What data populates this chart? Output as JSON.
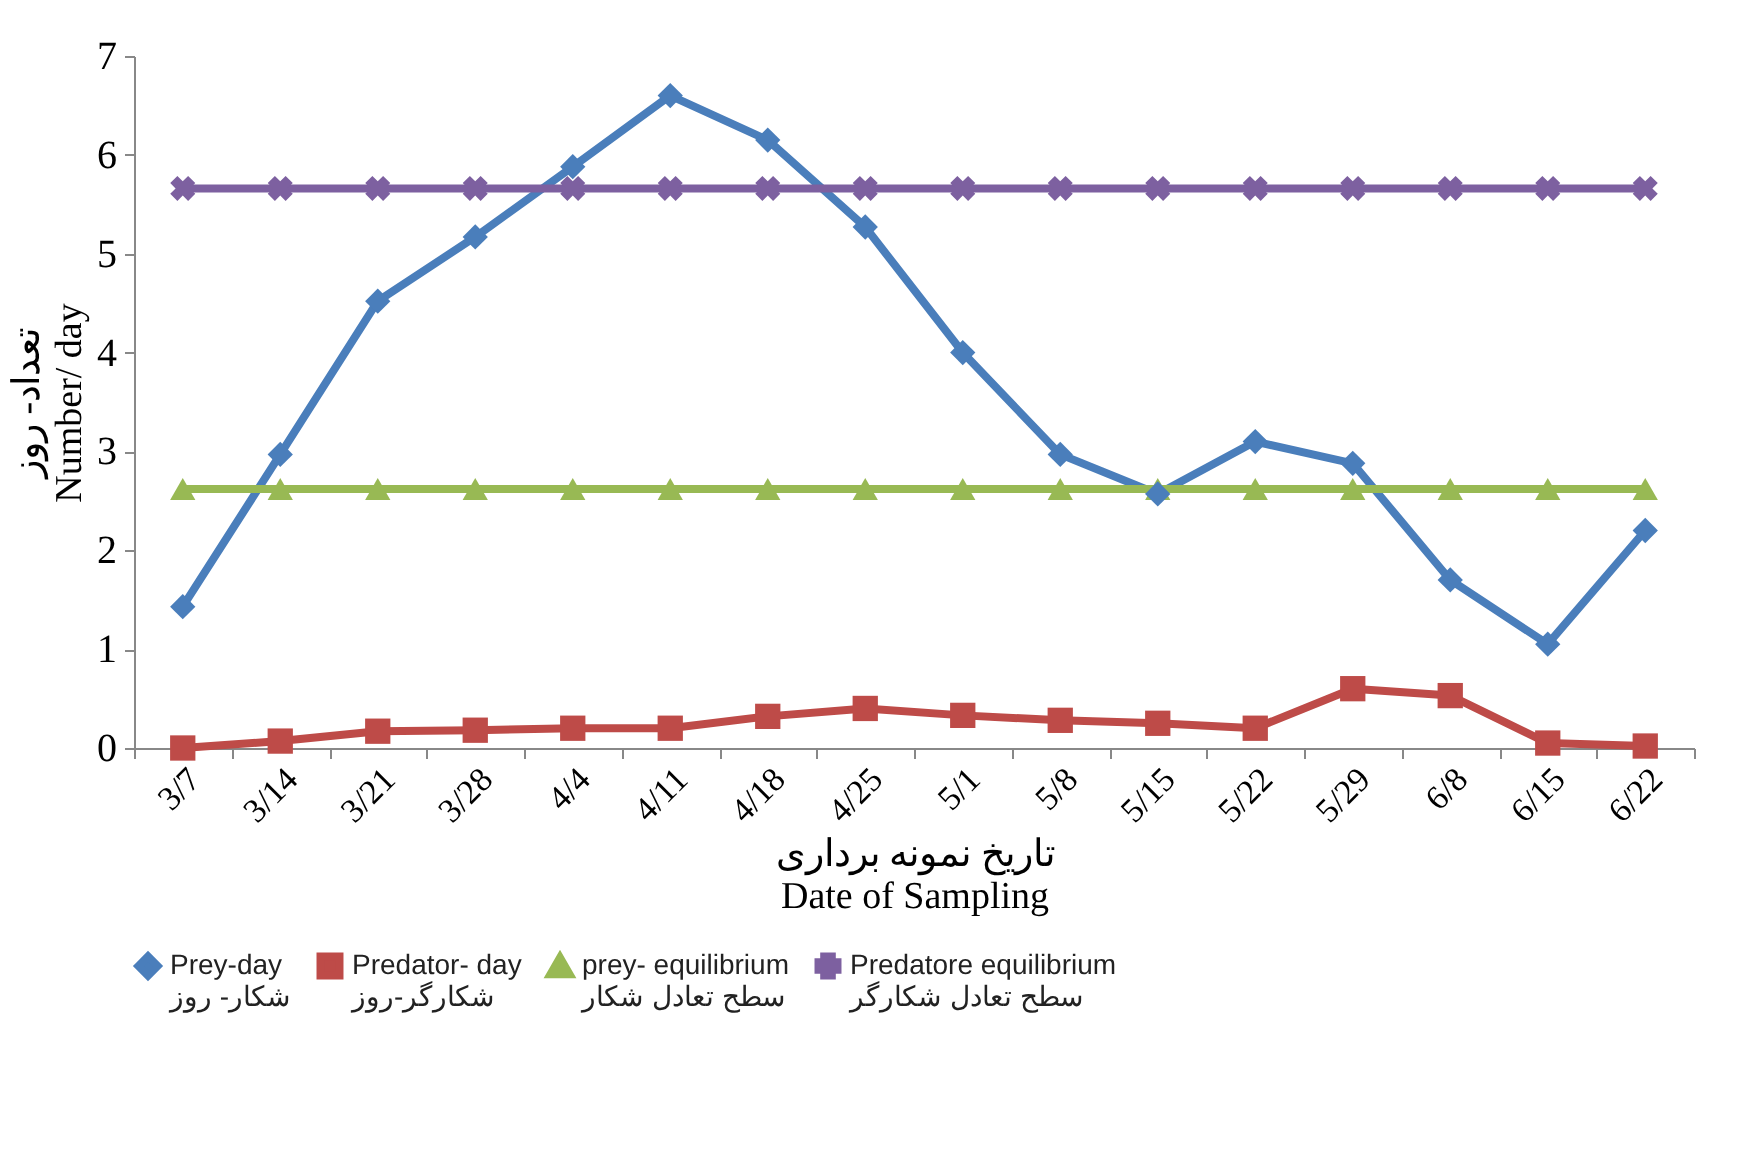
{
  "chart_data": {
    "type": "line",
    "xlabel": "تاریخ نمونه برداری\nDate of Sampling",
    "ylabel": "تعداد- روز\nNumber/ day",
    "categories": [
      "3/7",
      "3/14",
      "3/21",
      "3/28",
      "4/4",
      "4/11",
      "4/18",
      "4/25",
      "5/1",
      "5/8",
      "5/15",
      "5/22",
      "5/29",
      "6/8",
      "6/15",
      "6/22"
    ],
    "ylim": [
      0,
      7
    ],
    "yticks": [
      0,
      1,
      2,
      3,
      4,
      5,
      6,
      7
    ],
    "grid": false,
    "legend": "bottom",
    "series": [
      {
        "name": "Prey-day\nشکار- روز",
        "color": "#4a7ebb",
        "marker": "diamond",
        "values": [
          1.43,
          2.97,
          4.52,
          5.17,
          5.88,
          6.6,
          6.15,
          5.27,
          4.0,
          2.97,
          2.57,
          3.1,
          2.88,
          1.7,
          1.05,
          2.2
        ]
      },
      {
        "name": "Predator- day\nشکارگر-روز",
        "color": "#be4b48",
        "marker": "square",
        "values": [
          0,
          0.07,
          0.17,
          0.18,
          0.2,
          0.2,
          0.32,
          0.4,
          0.33,
          0.28,
          0.25,
          0.2,
          0.6,
          0.53,
          0.05,
          0.02
        ]
      },
      {
        "name": "prey- equilibrium\nسطح تعادل شکار",
        "color": "#98b954",
        "marker": "triangle",
        "values": [
          2.62,
          2.62,
          2.62,
          2.62,
          2.62,
          2.62,
          2.62,
          2.62,
          2.62,
          2.62,
          2.62,
          2.62,
          2.62,
          2.62,
          2.62,
          2.62
        ]
      },
      {
        "name": "Predatore equilibrium\nسطح تعادل شکارگر",
        "color": "#7d60a0",
        "marker": "cross",
        "values": [
          5.66,
          5.66,
          5.66,
          5.66,
          5.66,
          5.66,
          5.66,
          5.66,
          5.66,
          5.66,
          5.66,
          5.66,
          5.66,
          5.66,
          5.66,
          5.66
        ]
      }
    ]
  }
}
